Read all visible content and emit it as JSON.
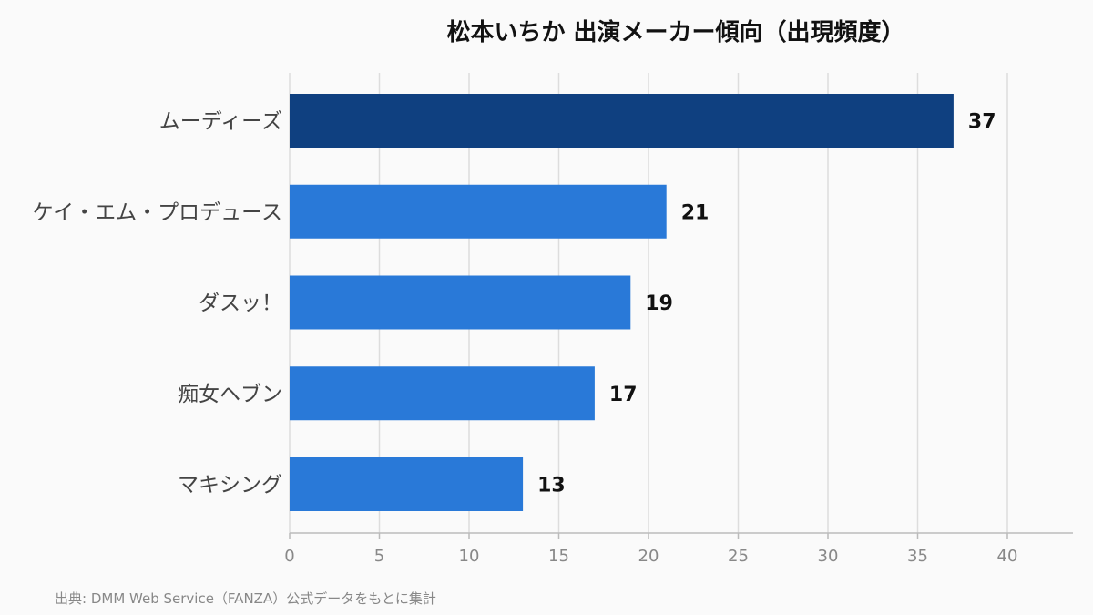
{
  "chart_data": {
    "type": "bar",
    "orientation": "horizontal",
    "title": "松本いちか 出演メーカー傾向（出現頻度）",
    "categories": [
      "ムーディーズ",
      "ケイ・エム・プロデュース",
      "ダスッ！",
      "痴女ヘブン",
      "マキシング"
    ],
    "values": [
      37,
      21,
      19,
      17,
      13
    ],
    "xlim": [
      0,
      44
    ],
    "xticks": [
      0,
      5,
      10,
      15,
      20,
      25,
      30,
      35,
      40
    ],
    "grid": true,
    "data_labels": true,
    "colors": {
      "highlight": "#0f4080",
      "bar": "#2979d8",
      "grid": "#dddddd",
      "axis": "#bbbbbb"
    }
  },
  "source": "出典: DMM Web Service（FANZA）公式データをもとに集計"
}
